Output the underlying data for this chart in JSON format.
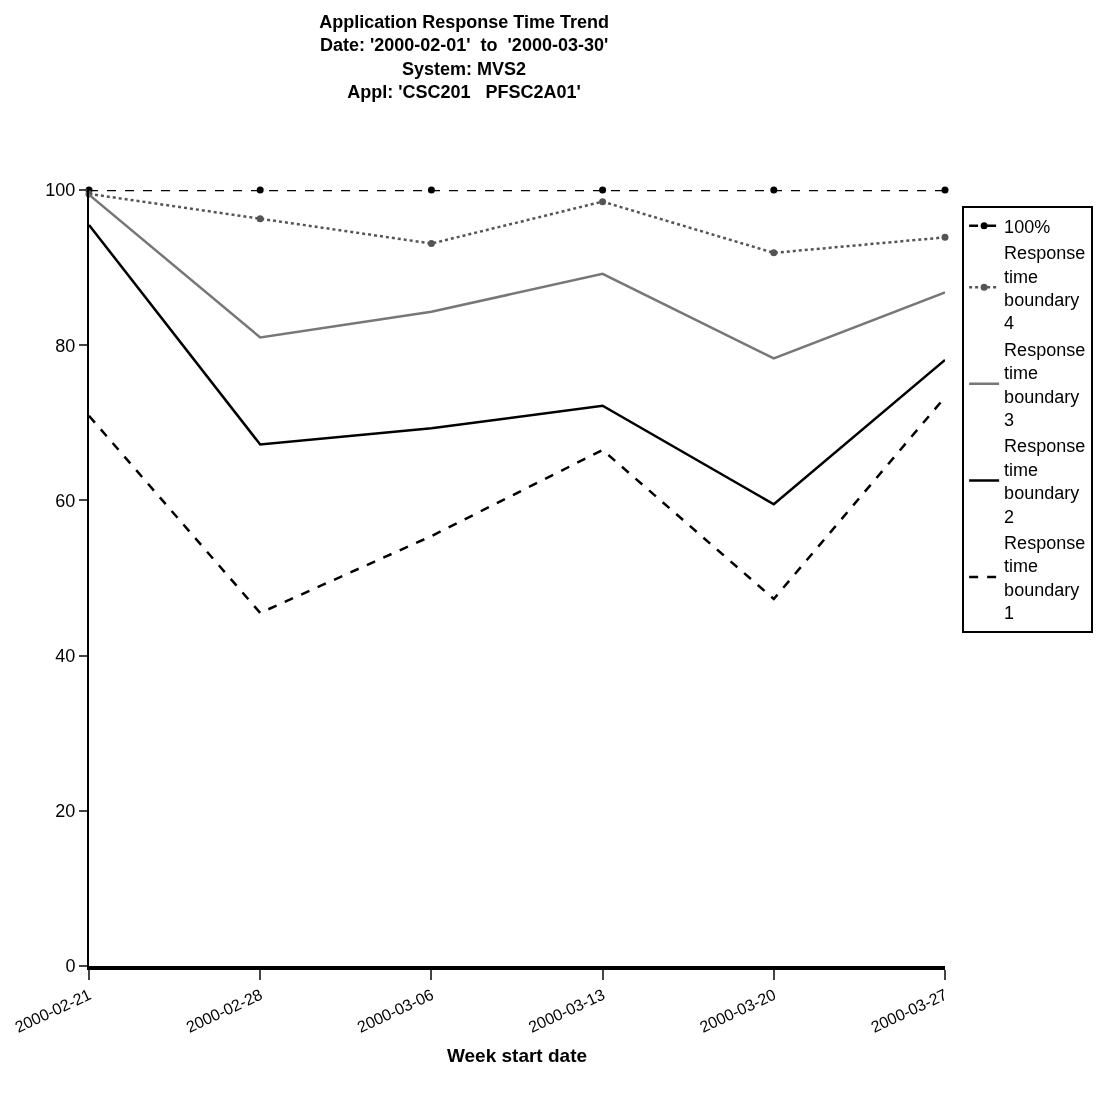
{
  "chart_data": {
    "type": "line",
    "title": "Application Response Time Trend",
    "subtitle": "Date: '2000-02-01'  to  '2000-03-30'\nSystem: MVS2\nAppl: 'CSC201   PFSC2A01'",
    "xlabel": "Week start date",
    "categories": [
      "2000-02-21",
      "2000-02-28",
      "2000-03-06",
      "2000-03-13",
      "2000-03-20",
      "2000-03-27"
    ],
    "ylim": [
      0,
      100
    ],
    "yticks": [
      0,
      20,
      40,
      60,
      80,
      100
    ],
    "legend": "right",
    "series": [
      {
        "name": "100%",
        "color": "#000000",
        "line_style": "dashed",
        "marker": "circle",
        "values": [
          100,
          100,
          100,
          100,
          100,
          100
        ]
      },
      {
        "name": "Response time boundary 4",
        "color": "#555555",
        "line_style": "dotted",
        "marker": "circle",
        "values": [
          99.5,
          96.3,
          93.1,
          98.5,
          91.9,
          93.9
        ]
      },
      {
        "name": "Response time boundary 3",
        "color": "#777777",
        "line_style": "solid",
        "marker": "none",
        "values": [
          99.4,
          81.0,
          84.3,
          89.2,
          78.3,
          86.8
        ]
      },
      {
        "name": "Response time boundary 2",
        "color": "#000000",
        "line_style": "solid",
        "marker": "none",
        "values": [
          95.5,
          67.2,
          69.3,
          72.2,
          59.5,
          78.1
        ]
      },
      {
        "name": "Response time boundary 1",
        "color": "#000000",
        "line_style": "dashed",
        "marker": "none",
        "values": [
          70.9,
          45.5,
          55.4,
          66.5,
          47.3,
          73.3
        ]
      }
    ]
  }
}
